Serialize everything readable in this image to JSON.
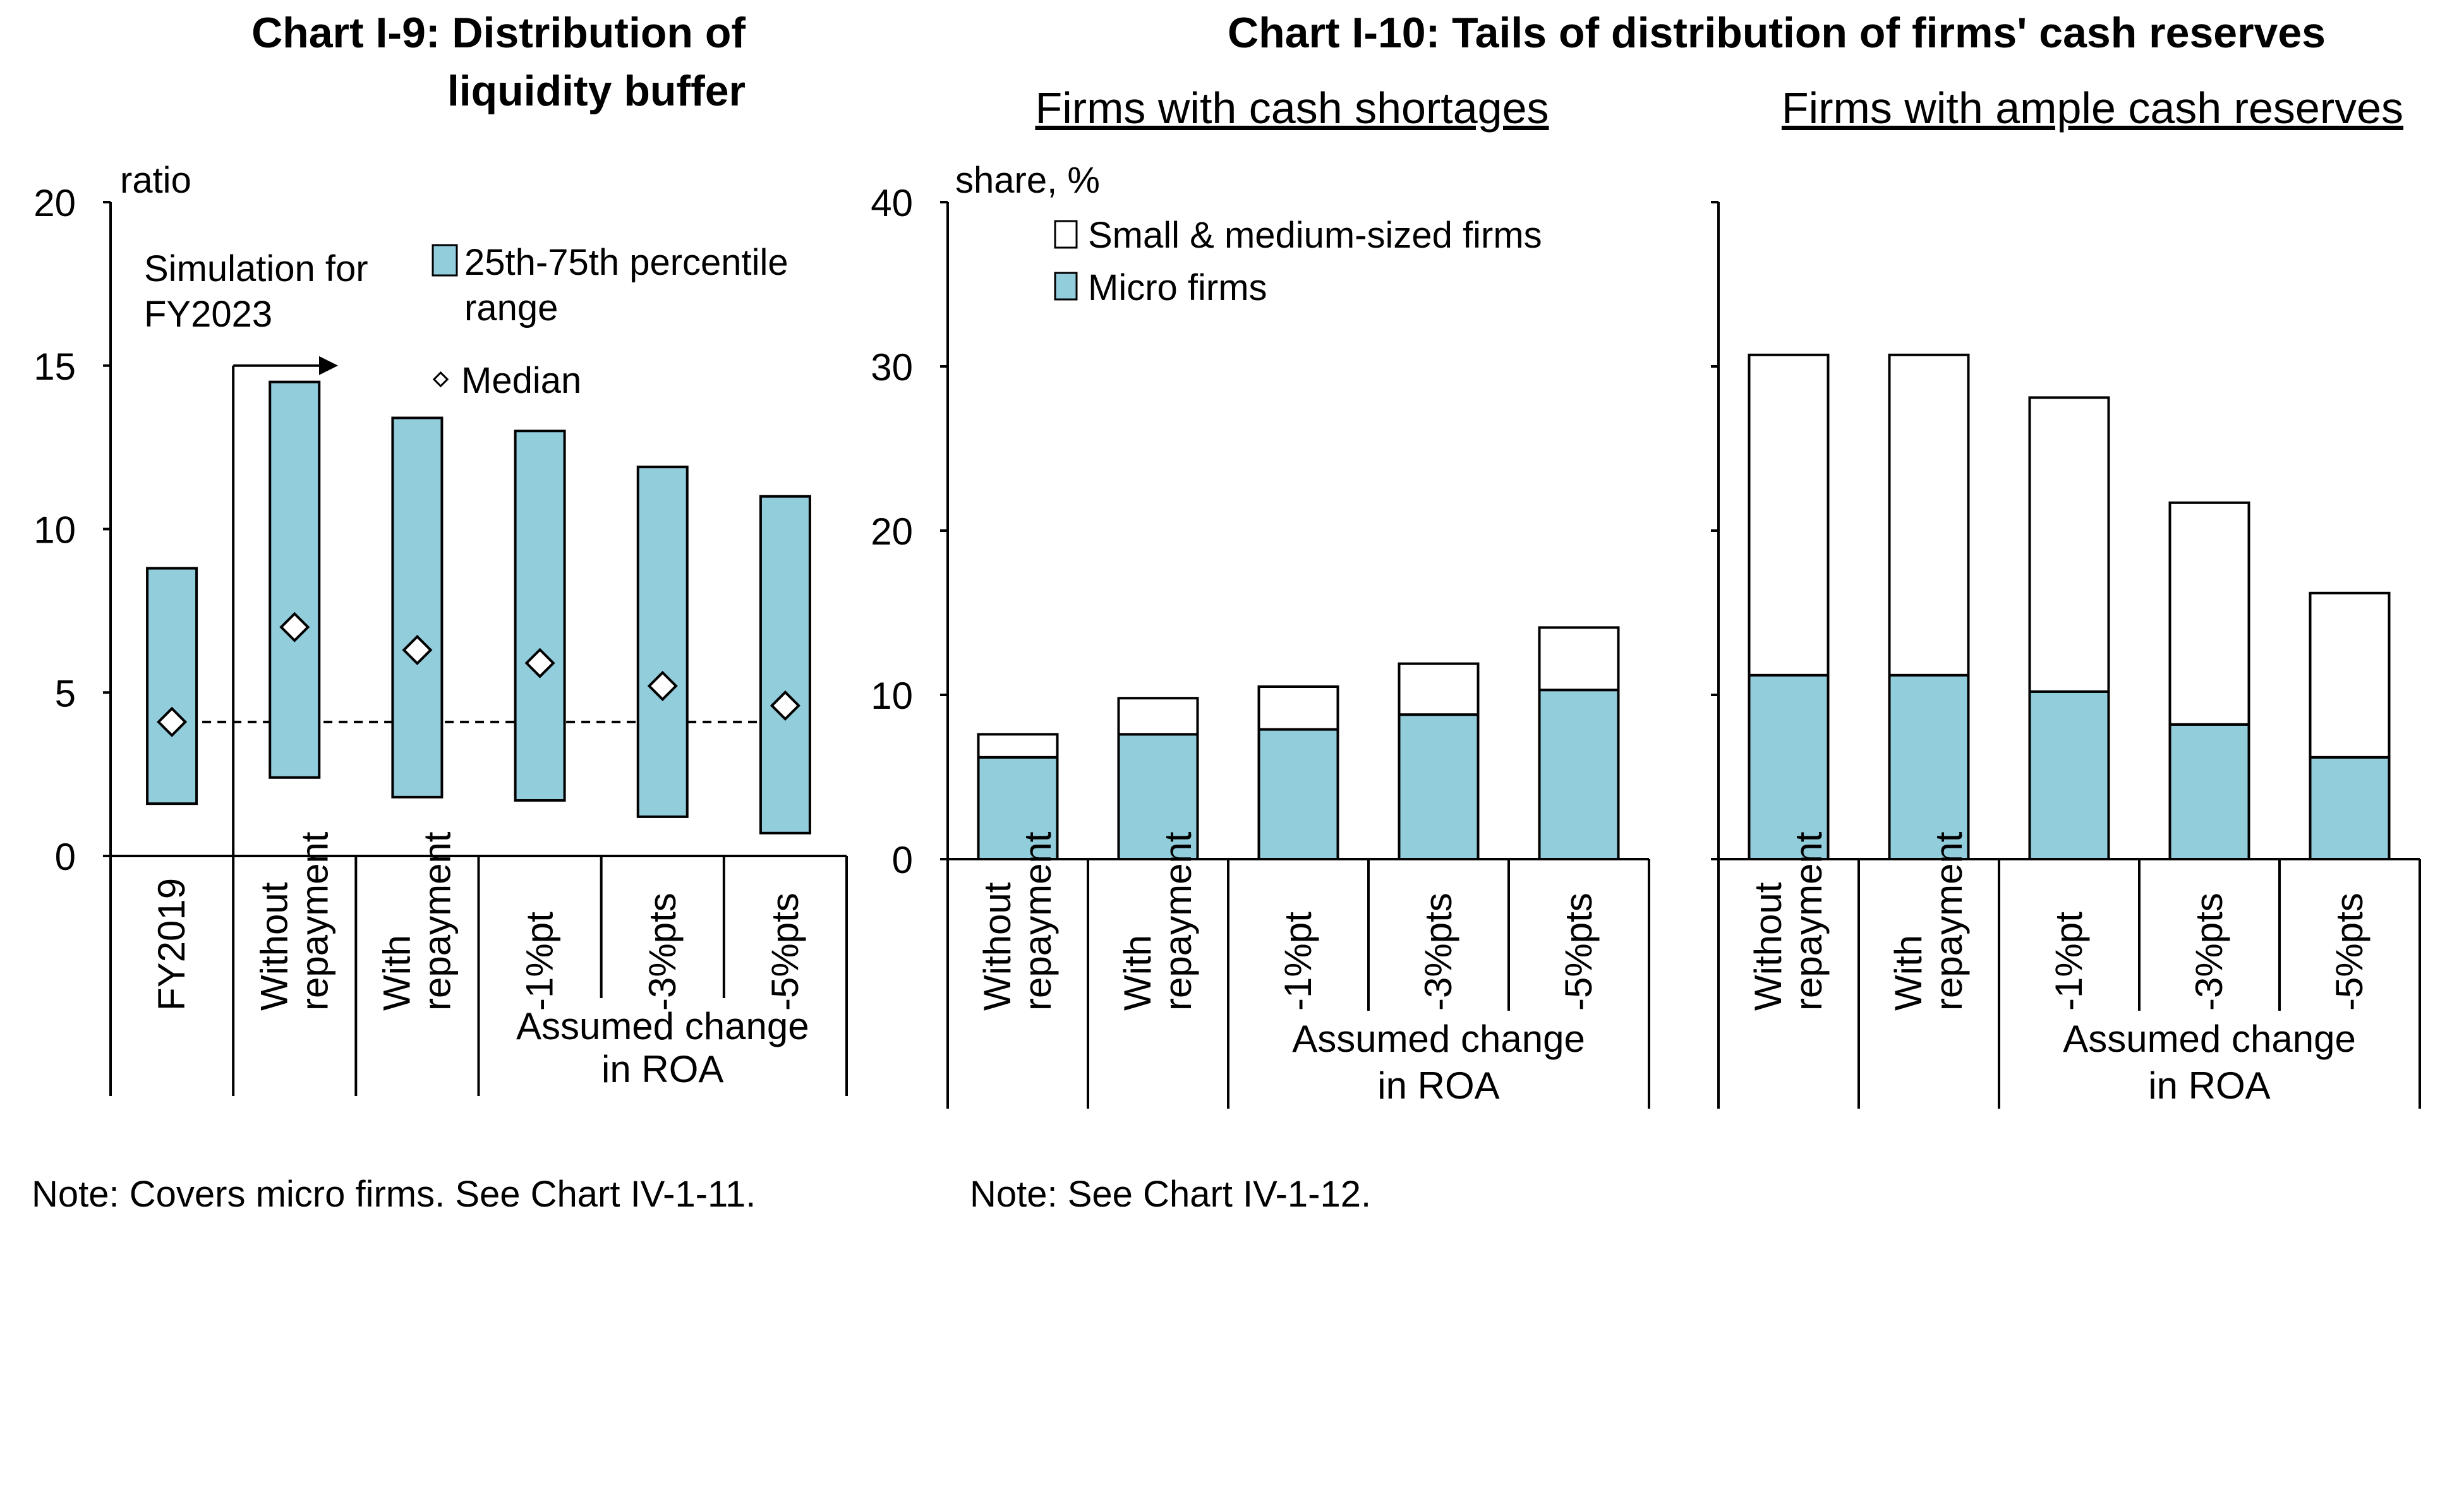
{
  "chart_data": [
    {
      "type": "range-bar",
      "title": "Chart I-9: Distribution of liquidity buffer",
      "title_lines": [
        "Chart I-9: Distribution of",
        "liquidity buffer"
      ],
      "ylabel": "ratio",
      "ylim": [
        0,
        20
      ],
      "yticks": [
        0,
        5,
        10,
        15,
        20
      ],
      "categories": [
        "FY2019",
        "Without repayment",
        "With repayment",
        "-1%pt",
        "-3%pts",
        "-5%pts"
      ],
      "category_lines": [
        [
          "FY2019"
        ],
        [
          "Without",
          "repayment"
        ],
        [
          "With",
          "repayment"
        ],
        [
          "-1%pt"
        ],
        [
          "-3%pts"
        ],
        [
          "-5%pts"
        ]
      ],
      "group_label": "Assumed change in ROA",
      "group_label_lines": [
        "Assumed change",
        "in ROA"
      ],
      "simulation_label": "Simulation for FY2023",
      "simulation_label_lines": [
        "Simulation  for",
        "FY2023"
      ],
      "series": [
        {
          "name": "25th-75th percentile range",
          "name_lines": [
            "25th-75th percentile",
            "range"
          ],
          "low": [
            1.6,
            2.4,
            1.8,
            1.7,
            1.2,
            0.7
          ],
          "high": [
            8.8,
            14.5,
            13.4,
            13.0,
            11.9,
            11.0
          ],
          "color": "#92cddc"
        },
        {
          "name": "Median",
          "values": [
            4.1,
            7.0,
            6.3,
            5.9,
            5.2,
            4.6
          ]
        }
      ],
      "reference_line": 4.1,
      "note": "Note: Covers micro firms. See Chart IV-1-11."
    },
    {
      "type": "stacked-bar",
      "title": "Chart I-10: Tails of distribution of firms' cash reserves",
      "ylabel": "share, %",
      "ylim": [
        0,
        40
      ],
      "yticks": [
        0,
        10,
        20,
        30,
        40
      ],
      "legend": [
        {
          "name": "Small & medium-sized firms",
          "color": "#ffffff"
        },
        {
          "name": "Micro firms",
          "color": "#92cddc"
        }
      ],
      "note": "Note: See Chart IV-1-12.",
      "panels": [
        {
          "subtitle": "Firms with cash shortages",
          "categories": [
            "Without repayment",
            "With repayment",
            "-1%pt",
            "-3%pts",
            "-5%pts"
          ],
          "category_lines": [
            [
              "Without",
              "repayment"
            ],
            [
              "With",
              "repayment"
            ],
            [
              "-1%pt"
            ],
            [
              "-3%pts"
            ],
            [
              "-5%pts"
            ]
          ],
          "group_label": "Assumed change in ROA",
          "group_label_lines": [
            "Assumed change",
            "in ROA"
          ],
          "series": [
            {
              "name": "Micro firms",
              "values": [
                6.2,
                7.6,
                7.9,
                8.8,
                10.3
              ]
            },
            {
              "name": "Small & medium-sized firms",
              "values": [
                1.4,
                2.2,
                2.6,
                3.1,
                3.8
              ]
            }
          ]
        },
        {
          "subtitle": "Firms with ample cash reserves",
          "categories": [
            "Without repayment",
            "With repayment",
            "-1%pt",
            "-3%pts",
            "-5%pts"
          ],
          "category_lines": [
            [
              "Without",
              "repayment"
            ],
            [
              "With",
              "repayment"
            ],
            [
              "-1%pt"
            ],
            [
              "-3%pts"
            ],
            [
              "-5%pts"
            ]
          ],
          "group_label": "Assumed change in ROA",
          "group_label_lines": [
            "Assumed change",
            "in ROA"
          ],
          "series": [
            {
              "name": "Micro firms",
              "values": [
                11.2,
                11.2,
                10.2,
                8.2,
                6.2
              ]
            },
            {
              "name": "Small & medium-sized firms",
              "values": [
                19.5,
                19.5,
                17.9,
                13.5,
                10.0
              ]
            }
          ]
        }
      ]
    }
  ]
}
